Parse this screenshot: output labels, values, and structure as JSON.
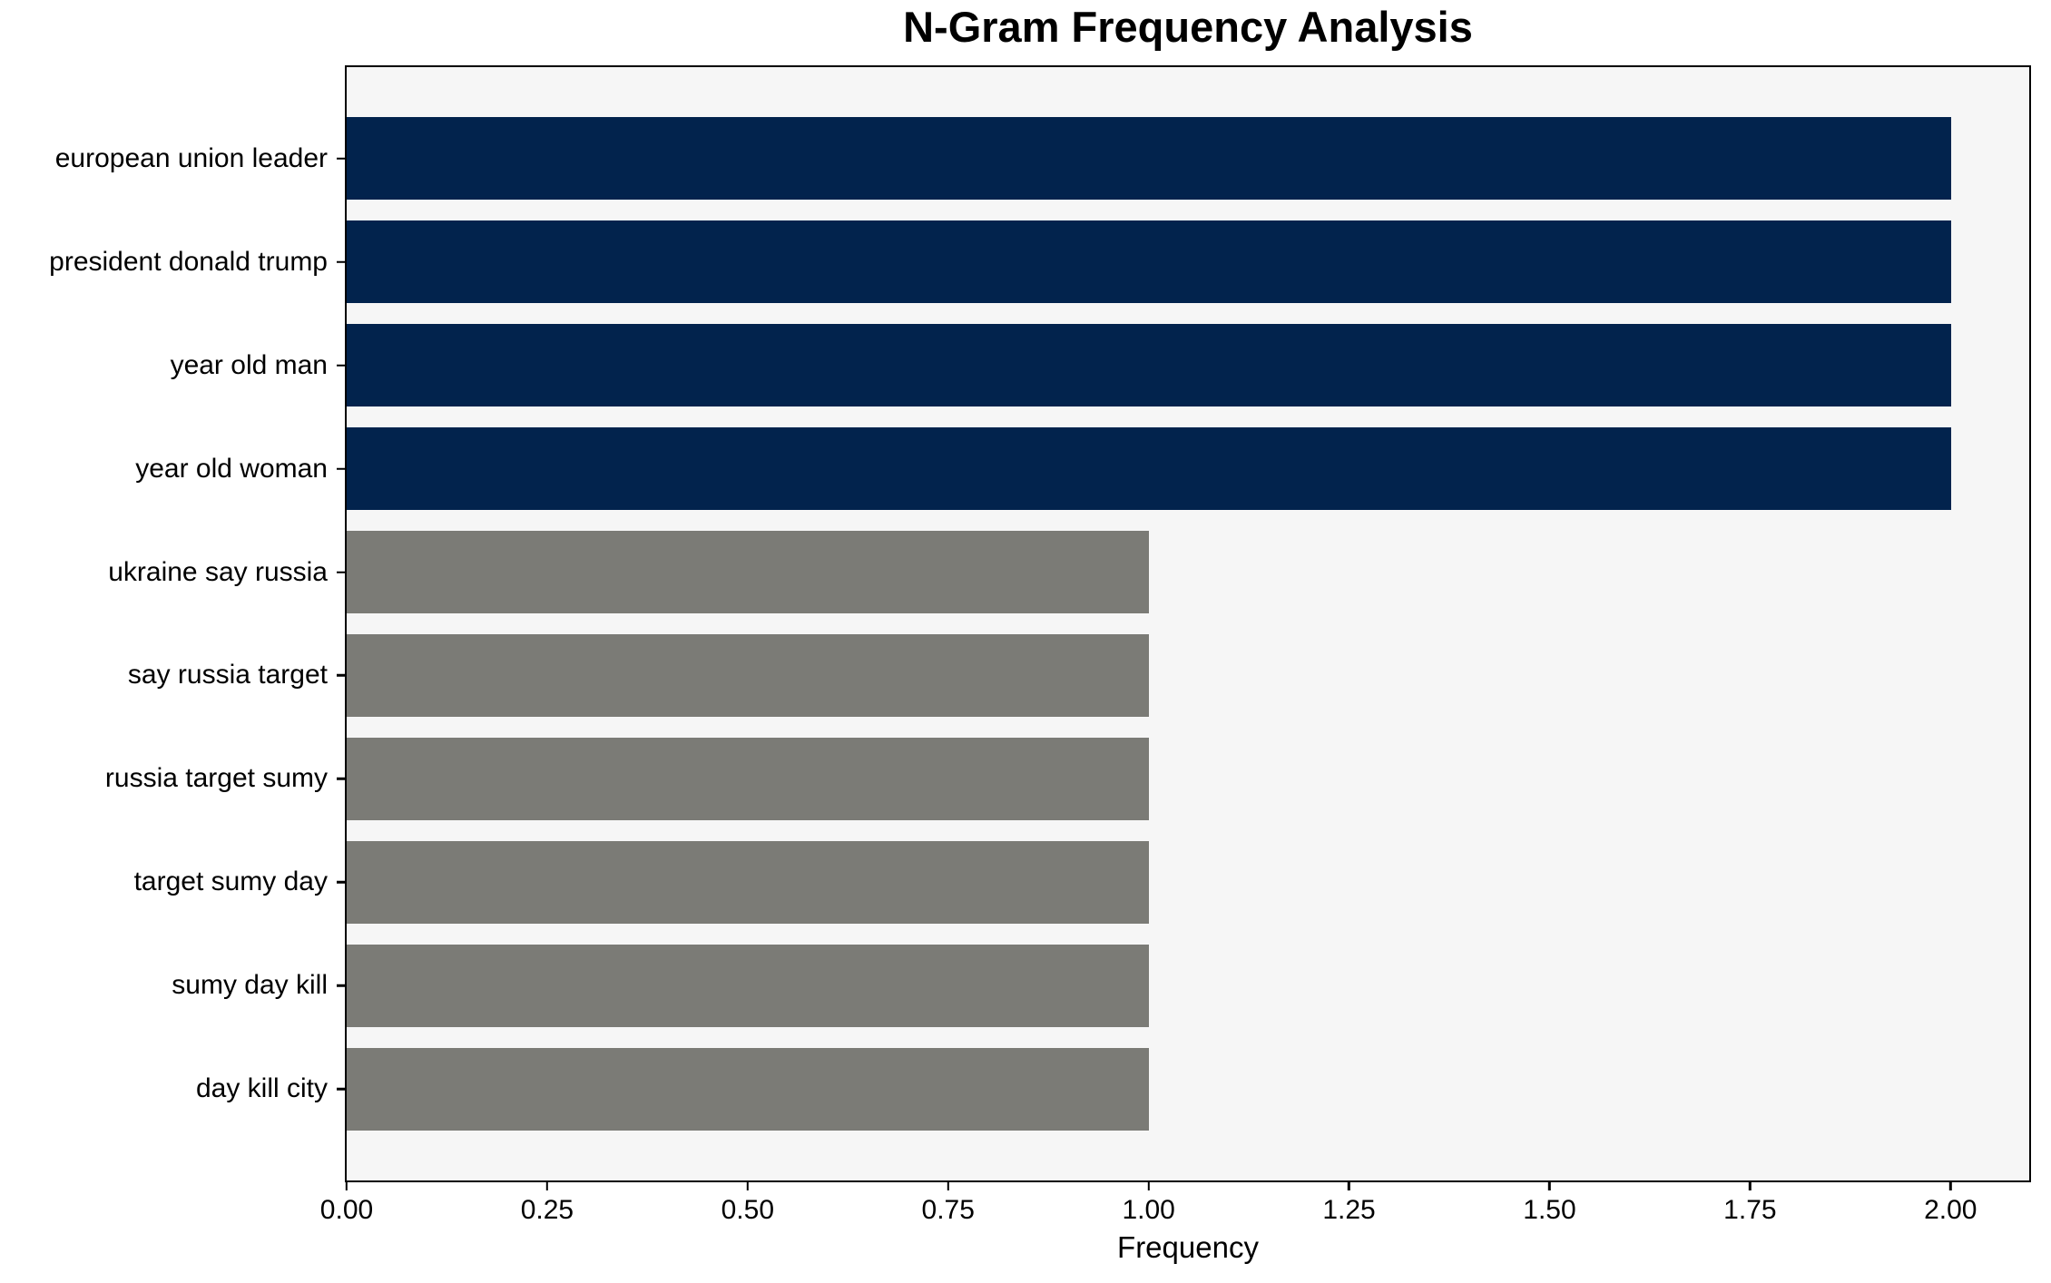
{
  "chart_data": {
    "type": "bar",
    "orientation": "horizontal",
    "title": "N-Gram Frequency Analysis",
    "xlabel": "Frequency",
    "ylabel": "",
    "categories": [
      "european union leader",
      "president donald trump",
      "year old man",
      "year old woman",
      "ukraine say russia",
      "say russia target",
      "russia target sumy",
      "target sumy day",
      "sumy day kill",
      "day kill city"
    ],
    "values": [
      2,
      2,
      2,
      2,
      1,
      1,
      1,
      1,
      1,
      1
    ],
    "bar_colors": [
      "#02234d",
      "#02234d",
      "#02234d",
      "#02234d",
      "#7b7b76",
      "#7b7b76",
      "#7b7b76",
      "#7b7b76",
      "#7b7b76",
      "#7b7b76"
    ],
    "xlim": [
      0,
      2.097
    ],
    "xticks": [
      0,
      0.25,
      0.5,
      0.75,
      1.0,
      1.25,
      1.5,
      1.75,
      2.0
    ],
    "xtick_labels": [
      "0.00",
      "0.25",
      "0.50",
      "0.75",
      "1.00",
      "1.25",
      "1.50",
      "1.75",
      "2.00"
    ],
    "grid": false,
    "legend_position": "none",
    "plot_background": "#f6f6f6",
    "figure_background": "#ffffff",
    "accent_navy": "#02234d",
    "accent_gray": "#7b7b76"
  }
}
